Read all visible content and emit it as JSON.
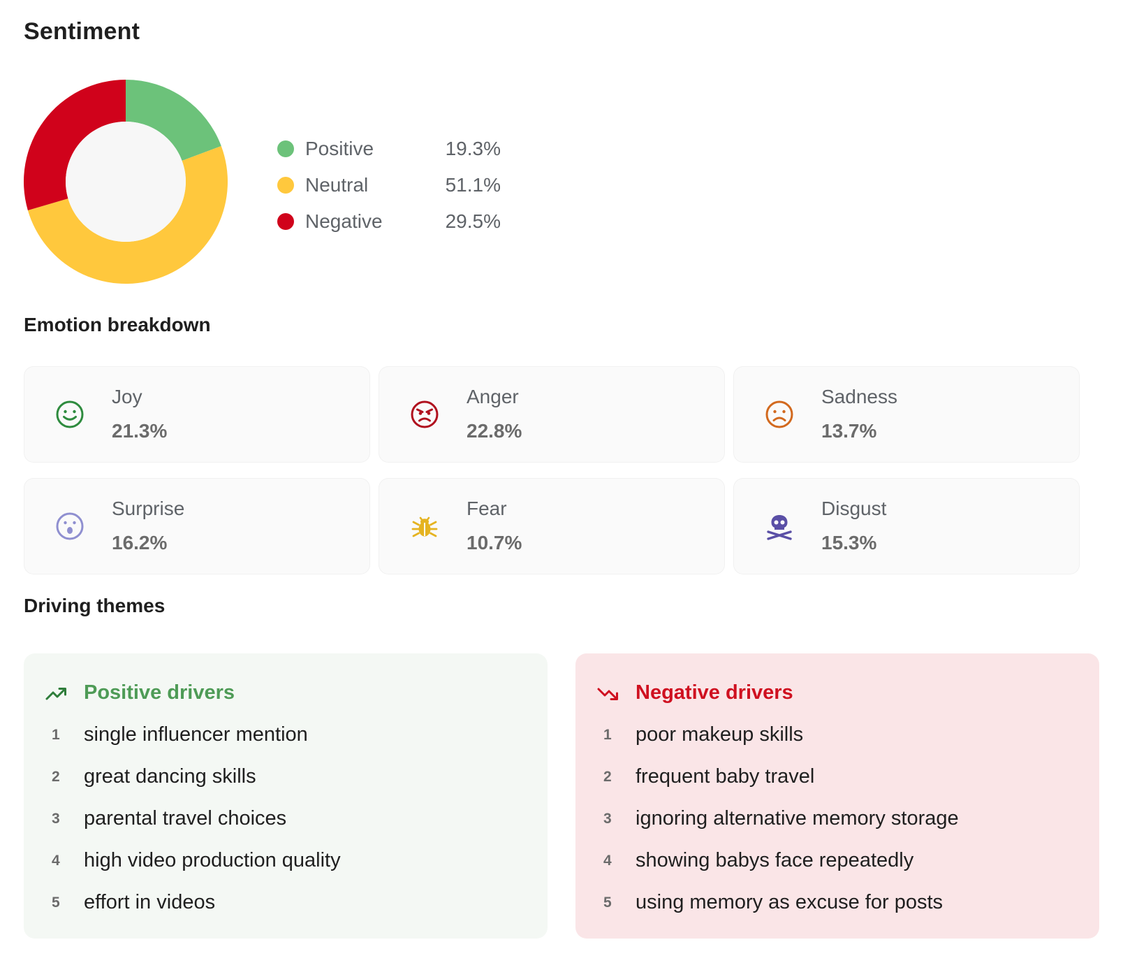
{
  "title": "Sentiment",
  "colors": {
    "positive": "#6cc27a",
    "neutral": "#ffc83d",
    "negative": "#d0021b",
    "donut_hole": "#f7f7f7"
  },
  "chart_data": {
    "type": "pie",
    "categories": [
      "Positive",
      "Neutral",
      "Negative"
    ],
    "values": [
      19.3,
      51.1,
      29.5
    ],
    "value_labels": [
      "19.3%",
      "51.1%",
      "29.5%"
    ],
    "colors": [
      "#6cc27a",
      "#ffc83d",
      "#d0021b"
    ],
    "donut": true,
    "legend": "right"
  },
  "legend": [
    {
      "label": "Positive",
      "value": "19.3%",
      "color": "#6cc27a"
    },
    {
      "label": "Neutral",
      "value": "51.1%",
      "color": "#ffc83d"
    },
    {
      "label": "Negative",
      "value": "29.5%",
      "color": "#d0021b"
    }
  ],
  "emotion_breakdown": {
    "heading": "Emotion breakdown",
    "items": [
      {
        "name": "Joy",
        "value": "21.3%",
        "icon": "smile-icon",
        "color": "#2e8b3e"
      },
      {
        "name": "Anger",
        "value": "22.8%",
        "icon": "angry-face-icon",
        "color": "#b0101e"
      },
      {
        "name": "Sadness",
        "value": "13.7%",
        "icon": "frown-icon",
        "color": "#d2691e"
      },
      {
        "name": "Surprise",
        "value": "16.2%",
        "icon": "surprised-face-icon",
        "color": "#8f8fd0"
      },
      {
        "name": "Fear",
        "value": "10.7%",
        "icon": "bug-icon",
        "color": "#e5b320"
      },
      {
        "name": "Disgust",
        "value": "15.3%",
        "icon": "skull-crossbones-icon",
        "color": "#5a4fa6"
      }
    ]
  },
  "driving_themes": {
    "heading": "Driving themes",
    "positive": {
      "title": "Positive drivers",
      "icon": "trending-up-icon",
      "items": [
        {
          "num": "1",
          "text": "single influencer mention"
        },
        {
          "num": "2",
          "text": "great dancing skills"
        },
        {
          "num": "3",
          "text": "parental travel choices"
        },
        {
          "num": "4",
          "text": "high video production quality"
        },
        {
          "num": "5",
          "text": "effort in videos"
        }
      ]
    },
    "negative": {
      "title": "Negative drivers",
      "icon": "trending-down-icon",
      "items": [
        {
          "num": "1",
          "text": "poor makeup skills"
        },
        {
          "num": "2",
          "text": "frequent baby travel"
        },
        {
          "num": "3",
          "text": "ignoring alternative memory storage"
        },
        {
          "num": "4",
          "text": "showing babys face repeatedly"
        },
        {
          "num": "5",
          "text": "using memory as excuse for posts"
        }
      ]
    }
  }
}
